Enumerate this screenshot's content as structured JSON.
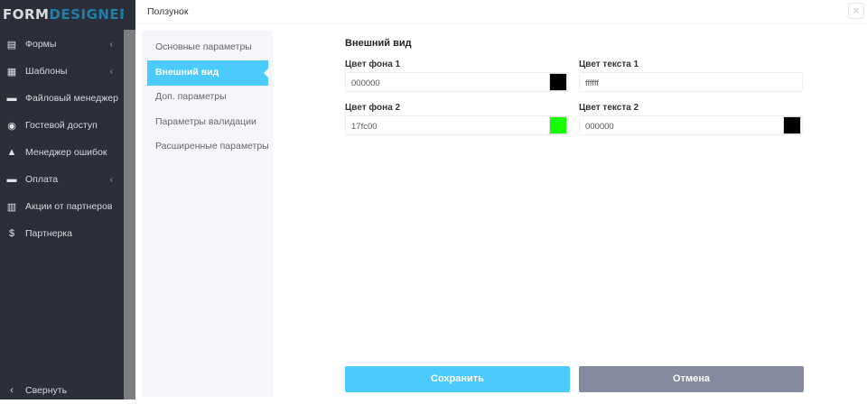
{
  "logo": {
    "part1": "FORM",
    "part2": "DESIGNER"
  },
  "sidebar": {
    "items": [
      {
        "label": "Формы",
        "icon": "forms-icon",
        "glyph": "▤",
        "chevron": true
      },
      {
        "label": "Шаблоны",
        "icon": "templates-icon",
        "glyph": "▦",
        "chevron": true
      },
      {
        "label": "Файловый менеджер",
        "icon": "folder-icon",
        "glyph": "▬",
        "chevron": false
      },
      {
        "label": "Гостевой доступ",
        "icon": "user-circle-icon",
        "glyph": "◉",
        "chevron": false
      },
      {
        "label": "Менеджер ошибок",
        "icon": "warning-icon",
        "glyph": "▲",
        "chevron": false
      },
      {
        "label": "Оплата",
        "icon": "credit-card-icon",
        "glyph": "▬",
        "chevron": true
      },
      {
        "label": "Акции от партнеров",
        "icon": "gift-icon",
        "glyph": "▥",
        "chevron": false
      },
      {
        "label": "Партнерка",
        "icon": "dollar-circle-icon",
        "glyph": "$",
        "chevron": false
      }
    ],
    "collapse": "Свернуть"
  },
  "modal": {
    "title": "Ползунок",
    "close": "×",
    "nav": [
      "Основные параметры",
      "Внешний вид",
      "Доп. параметры",
      "Параметры валидации",
      "Расширенные параметры"
    ],
    "active_nav": 1,
    "section_title": "Внешний вид",
    "fields": [
      {
        "label": "Цвет фона 1",
        "value": "000000",
        "swatch": "#000000"
      },
      {
        "label": "Цвет текста 1",
        "value": "ffffff",
        "swatch": null
      },
      {
        "label": "Цвет фона 2",
        "value": "17fc00",
        "swatch": "#17fc00"
      },
      {
        "label": "Цвет текста 2",
        "value": "000000",
        "swatch": "#000000"
      }
    ],
    "save": "Сохранить",
    "cancel": "Отмена"
  },
  "colors": {
    "accent": "#4bcbfd",
    "cancel": "#848b9f",
    "sidebar": "#2b2f3a"
  }
}
